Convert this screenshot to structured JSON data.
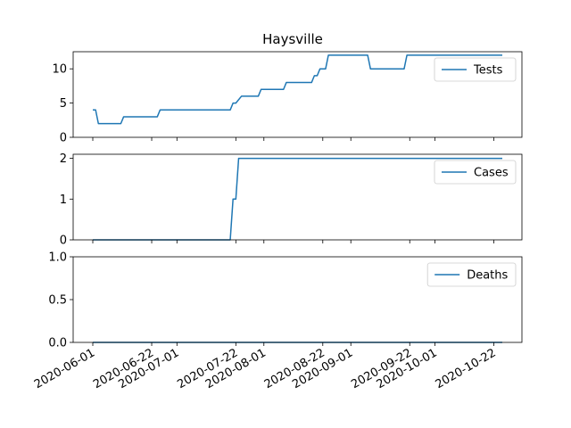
{
  "figure": {
    "title": "Haysville"
  },
  "chart_data": [
    {
      "type": "line",
      "title": "Haysville",
      "xlabel": "",
      "ylabel": "",
      "ylim": [
        0,
        12.5
      ],
      "yticks": [
        0,
        5,
        10
      ],
      "ytick_labels": [
        "0",
        "5",
        "10"
      ],
      "legend": "upper-right",
      "series": [
        {
          "name": "Tests",
          "color": "#1f77b4",
          "points": [
            [
              "2020-06-01",
              4
            ],
            [
              "2020-06-02",
              4
            ],
            [
              "2020-06-03",
              2
            ],
            [
              "2020-06-11",
              2
            ],
            [
              "2020-06-12",
              3
            ],
            [
              "2020-06-24",
              3
            ],
            [
              "2020-06-25",
              4
            ],
            [
              "2020-07-20",
              4
            ],
            [
              "2020-07-21",
              5
            ],
            [
              "2020-07-22",
              5
            ],
            [
              "2020-07-24",
              6
            ],
            [
              "2020-07-30",
              6
            ],
            [
              "2020-07-31",
              7
            ],
            [
              "2020-08-08",
              7
            ],
            [
              "2020-08-09",
              8
            ],
            [
              "2020-08-18",
              8
            ],
            [
              "2020-08-19",
              9
            ],
            [
              "2020-08-20",
              9
            ],
            [
              "2020-08-21",
              10
            ],
            [
              "2020-08-23",
              10
            ],
            [
              "2020-08-24",
              12
            ],
            [
              "2020-09-07",
              12
            ],
            [
              "2020-09-08",
              10
            ],
            [
              "2020-09-20",
              10
            ],
            [
              "2020-09-21",
              12
            ],
            [
              "2020-10-25",
              12
            ]
          ]
        }
      ]
    },
    {
      "type": "line",
      "xlabel": "",
      "ylabel": "",
      "ylim": [
        0,
        2.1
      ],
      "yticks": [
        0,
        1,
        2
      ],
      "ytick_labels": [
        "0",
        "1",
        "2"
      ],
      "legend": "upper-right",
      "series": [
        {
          "name": "Cases",
          "color": "#1f77b4",
          "points": [
            [
              "2020-06-01",
              0
            ],
            [
              "2020-07-20",
              0
            ],
            [
              "2020-07-21",
              1
            ],
            [
              "2020-07-22",
              1
            ],
            [
              "2020-07-23",
              2
            ],
            [
              "2020-10-25",
              2
            ]
          ]
        }
      ]
    },
    {
      "type": "line",
      "xlabel": "",
      "ylabel": "",
      "ylim": [
        0,
        1.0
      ],
      "yticks": [
        0,
        0.5,
        1.0
      ],
      "ytick_labels": [
        "0.0",
        "0.5",
        "1.0"
      ],
      "legend": "upper-right",
      "x_tick_labels": [
        "2020-06-01",
        "2020-06-22",
        "2020-07-01",
        "2020-07-22",
        "2020-08-01",
        "2020-08-22",
        "2020-09-01",
        "2020-09-22",
        "2020-10-01",
        "2020-10-22"
      ],
      "series": [
        {
          "name": "Deaths",
          "color": "#1f77b4",
          "points": [
            [
              "2020-06-01",
              0
            ],
            [
              "2020-10-25",
              0
            ]
          ]
        }
      ]
    }
  ]
}
